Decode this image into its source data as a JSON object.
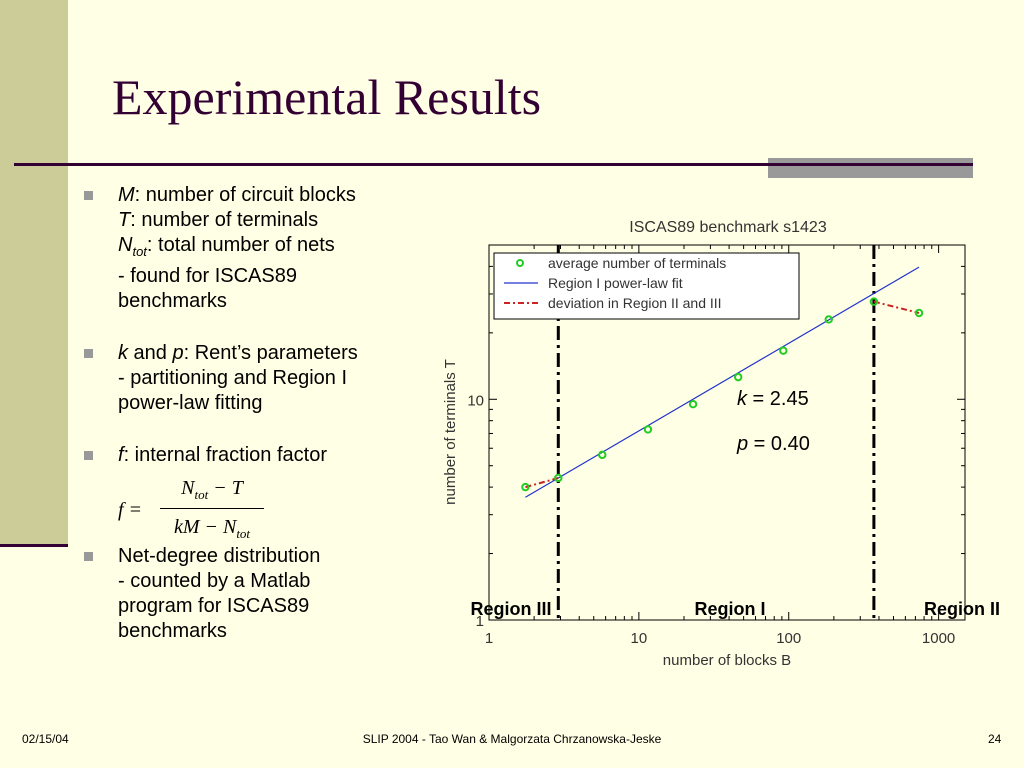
{
  "slide": {
    "title": "Experimental Results",
    "footer": {
      "date": "02/15/04",
      "center": "SLIP 2004  - Tao Wan & Malgorzata Chrzanowska-Jeske",
      "page": "24"
    }
  },
  "bullets": [
    {
      "lines": [
        {
          "var": "M",
          "text": ": number of circuit blocks"
        },
        {
          "var": "T",
          "text": ": number of terminals"
        },
        {
          "var": "N",
          "sub": "tot",
          "text": ": total number of nets"
        },
        {
          "text": "- found for ISCAS89"
        },
        {
          "text": "benchmarks"
        }
      ]
    },
    {
      "lines": [
        {
          "var": "k",
          "text": " and ",
          "var2": "p",
          "text2": ": Rent’s parameters"
        },
        {
          "text": "- partitioning and Region I"
        },
        {
          "text": "power-law fitting"
        }
      ]
    },
    {
      "lines": [
        {
          "var": "f",
          "text": ": internal fraction factor"
        }
      ]
    },
    {
      "lines": [
        {
          "text": "Net-degree distribution"
        },
        {
          "text": "- counted by a Matlab"
        },
        {
          "text": "program for ISCAS89"
        },
        {
          "text": "benchmarks"
        }
      ]
    }
  ],
  "formula": {
    "lhs": "f =",
    "numerator": "N",
    "numerator_sub": "tot",
    "numerator_rest": " − T",
    "denominator": "kM − N",
    "denominator_sub": "tot"
  },
  "chart_data": {
    "type": "scatter",
    "title": "ISCAS89 benchmark s1423",
    "xlabel": "number of blocks B",
    "ylabel": "number of terminals T",
    "x_scale": "log",
    "y_scale": "log",
    "xlim": [
      1,
      1500
    ],
    "ylim": [
      1,
      50
    ],
    "x_ticks": [
      "1",
      "10",
      "100",
      "1000"
    ],
    "y_ticks": [
      "1",
      "10"
    ],
    "legend": {
      "placement": "top-left",
      "entries": [
        "average number of terminals",
        "Region I power-law fit",
        "deviation in Region II and III"
      ]
    },
    "series": [
      {
        "name": "average number of terminals",
        "style": "markers",
        "color": "#22CC22",
        "x": [
          1.75,
          2.9,
          5.7,
          11.5,
          23,
          46,
          92,
          185,
          370,
          740
        ],
        "y": [
          4.0,
          4.4,
          5.6,
          7.3,
          9.5,
          12.6,
          16.6,
          23.0,
          27.7,
          24.6
        ]
      },
      {
        "name": "Region I power-law fit",
        "style": "line",
        "color": "#2233CC",
        "x": [
          1.75,
          740
        ],
        "y": [
          3.6,
          39.7
        ]
      },
      {
        "name": "deviation in Region II and III",
        "style": "dash-dot",
        "color": "#CC2222",
        "segments": [
          {
            "x": [
              1.75,
              2.9
            ],
            "y": [
              4.0,
              4.4
            ]
          },
          {
            "x": [
              370,
              740
            ],
            "y": [
              27.7,
              24.6
            ]
          }
        ]
      }
    ],
    "vertical_lines": [
      {
        "x": 2.9,
        "style": "dash-dot"
      },
      {
        "x": 370,
        "style": "dash-dot"
      }
    ],
    "annotations": {
      "k_var": "k",
      "k_value": " = 2.45",
      "p_var": "p",
      "p_value": " = 0.40"
    },
    "regions": [
      "Region III",
      "Region I",
      "Region II"
    ]
  }
}
